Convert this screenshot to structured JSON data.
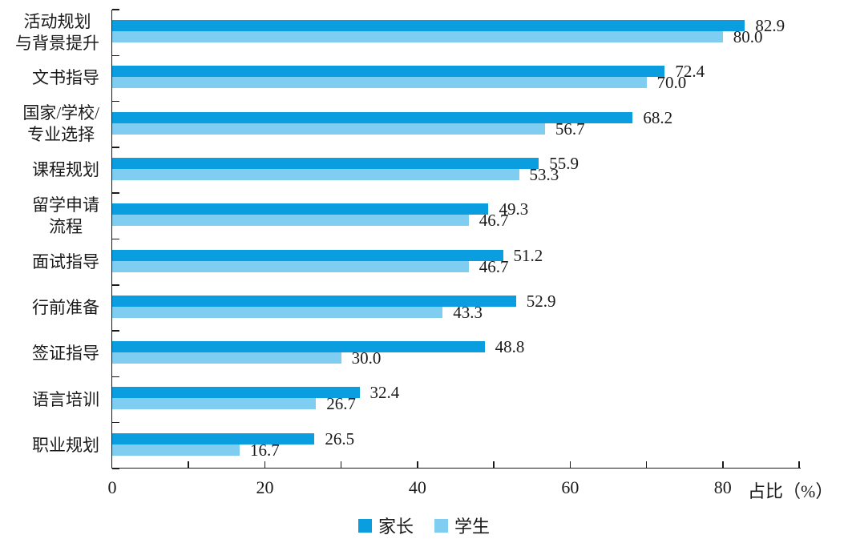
{
  "chart_data": {
    "type": "bar",
    "orientation": "horizontal",
    "title": "",
    "xlabel": "占比（%）",
    "xlim": [
      0,
      90
    ],
    "x_ticks": [
      0,
      20,
      40,
      60,
      80
    ],
    "minor_tick_step": 10,
    "grid": false,
    "legend_position": "bottom-center",
    "value_labels": true,
    "text_color": "#1a1a1a",
    "axis_color": "#1a1a1a",
    "categories": [
      [
        "活动规划",
        "与背景提升"
      ],
      [
        "文书指导"
      ],
      [
        "国家/学校/",
        "专业选择"
      ],
      [
        "课程规划"
      ],
      [
        "留学申请",
        "流程"
      ],
      [
        "面试指导"
      ],
      [
        "行前准备"
      ],
      [
        "签证指导"
      ],
      [
        "语言培训"
      ],
      [
        "职业规划"
      ]
    ],
    "series": [
      {
        "name": "家长",
        "key": "parents",
        "color": "#0a9ee0",
        "values": [
          82.9,
          72.4,
          68.2,
          55.9,
          49.3,
          51.2,
          52.9,
          48.8,
          32.4,
          26.5
        ]
      },
      {
        "name": "学生",
        "key": "students",
        "color": "#7fcdf1",
        "values": [
          80.0,
          70.0,
          56.7,
          53.3,
          46.7,
          46.7,
          43.3,
          30.0,
          26.7,
          16.7
        ]
      }
    ]
  }
}
